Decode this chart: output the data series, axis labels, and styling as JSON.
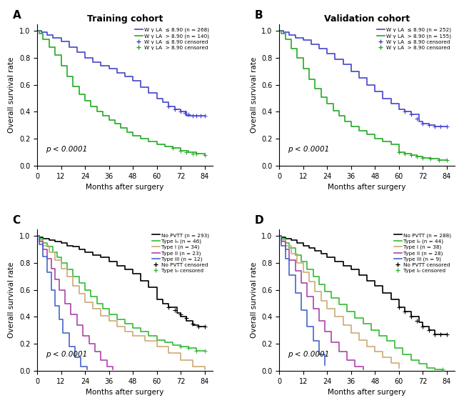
{
  "title_A": "Training cohort",
  "title_B": "Validation cohort",
  "xlabel": "Months after surgery",
  "ylabel": "Overall survival rate",
  "pvalue": "p < 0.0001",
  "xticks": [
    0,
    12,
    24,
    36,
    48,
    60,
    72,
    84
  ],
  "ylim": [
    0.0,
    1.05
  ],
  "xlim": [
    0,
    88
  ],
  "A_blue_n": 268,
  "A_green_n": 140,
  "B_blue_n": 252,
  "B_green_n": 155,
  "C_nopvtt_n": 293,
  "C_I0_n": 46,
  "C_I_n": 34,
  "C_II_n": 23,
  "C_III_n": 12,
  "D_nopvtt_n": 288,
  "D_I0_n": 44,
  "D_I_n": 38,
  "D_II_n": 28,
  "D_III_n": 9,
  "color_blue": "#4444cc",
  "color_green": "#22aa22",
  "color_black": "#000000",
  "color_lime": "#33bb33",
  "color_tan": "#ccaa77",
  "color_purple": "#aa44aa",
  "color_royalblue": "#4466cc",
  "background": "#ffffff"
}
